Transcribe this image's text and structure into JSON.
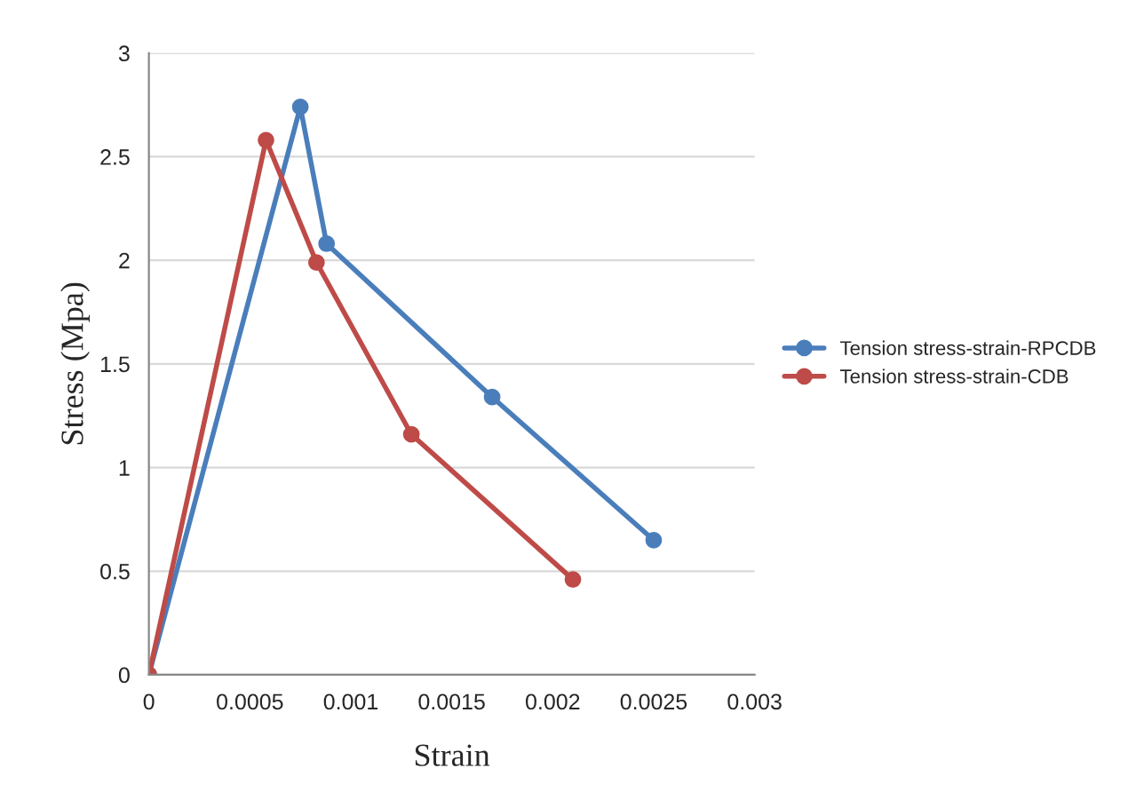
{
  "chart_data": {
    "type": "line",
    "xlabel": "Strain",
    "ylabel": "Stress (Mpa)",
    "series": [
      {
        "name": "Tension stress-strain-RPCDB",
        "color": "#4a7ebb",
        "x": [
          0,
          0.00075,
          0.00088,
          0.0017,
          0.0025
        ],
        "values": [
          0,
          2.74,
          2.08,
          1.34,
          0.65
        ]
      },
      {
        "name": "Tension stress-strain-CDB",
        "color": "#be4b48",
        "x": [
          0,
          0.00058,
          0.00083,
          0.0013,
          0.0021
        ],
        "values": [
          0,
          2.58,
          1.99,
          1.16,
          0.46
        ]
      }
    ],
    "xlim": [
      0,
      0.003
    ],
    "xticks": [
      0,
      0.0005,
      0.001,
      0.0015,
      0.002,
      0.0025,
      0.003
    ],
    "ylim": [
      0,
      3
    ],
    "yticks": [
      0,
      0.5,
      1,
      1.5,
      2,
      2.5,
      3
    ],
    "grid": "y",
    "legend": "right",
    "marker": "circle",
    "line_style": "solid"
  }
}
